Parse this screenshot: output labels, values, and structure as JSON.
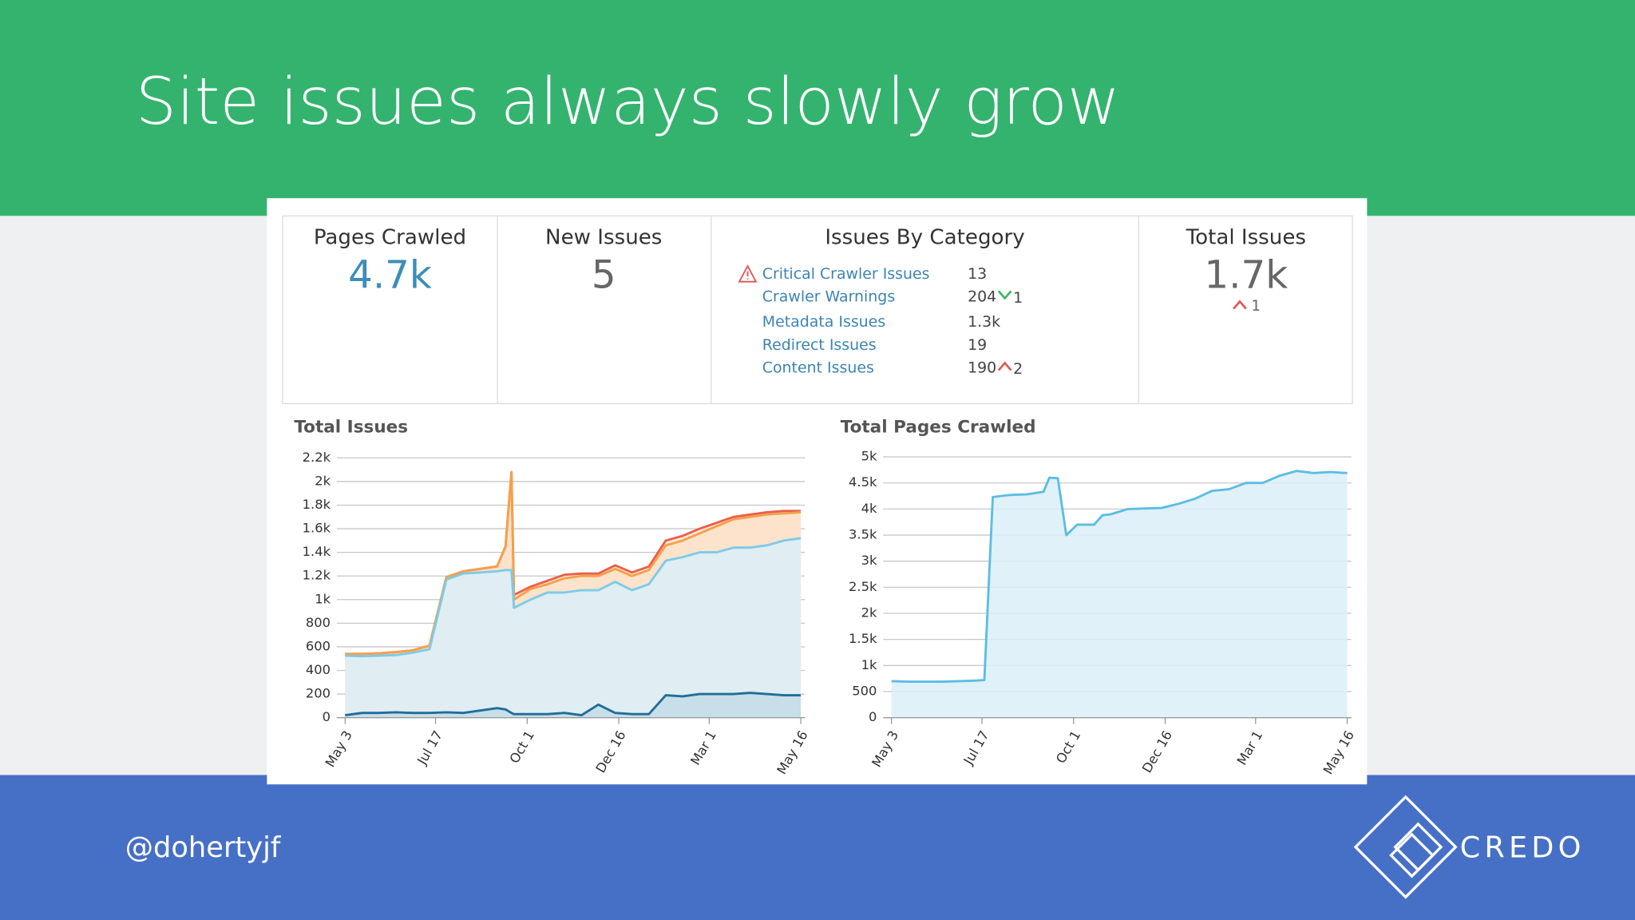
{
  "title": "Site issues always slowly grow",
  "stats": [
    {
      "label": "Pages Crawled",
      "value": "4.7k",
      "color": "#3d8db8"
    },
    {
      "label": "New Issues",
      "value": 5,
      "color": "#666666"
    },
    {
      "label": "Total Issues",
      "value": "1.7k",
      "color": "#666666",
      "change": 1,
      "trend": "up"
    }
  ],
  "categories_panel": {
    "title": "Issues By Category",
    "items": [
      {
        "name": "Critical Crawler Issues",
        "value": 13,
        "icon": "warning"
      },
      {
        "name": "Crawler Warnings",
        "value": 204,
        "change": 1,
        "trend": "down"
      },
      {
        "name": "Metadata Issues",
        "value": "1.3k"
      },
      {
        "name": "Redirect Issues",
        "value": 19
      },
      {
        "name": "Content Issues",
        "value": 190,
        "change": 2,
        "trend": "up"
      }
    ]
  },
  "chart_data": [
    {
      "type": "area",
      "title": "Total Issues",
      "x": [
        0,
        14,
        28,
        42,
        56,
        70,
        84,
        98,
        112,
        126,
        133,
        138,
        140,
        154,
        168,
        182,
        196,
        210,
        224,
        238,
        252,
        266,
        280,
        294,
        308,
        322,
        336,
        350,
        364,
        378
      ],
      "series": [
        {
          "color": "#e8604c",
          "fill": "#fde6d2",
          "values": [
            540,
            540,
            545,
            555,
            570,
            610,
            1190,
            1240,
            1260,
            1280,
            1450,
            2080,
            1040,
            1110,
            1160,
            1210,
            1220,
            1220,
            1290,
            1230,
            1280,
            1500,
            1540,
            1600,
            1650,
            1700,
            1720,
            1740,
            1750,
            1750
          ]
        },
        {
          "color": "#f5a04a",
          "fill": "#fde2c8",
          "values": [
            540,
            540,
            545,
            555,
            570,
            610,
            1190,
            1240,
            1260,
            1280,
            1450,
            2080,
            1000,
            1090,
            1130,
            1180,
            1200,
            1200,
            1260,
            1200,
            1250,
            1460,
            1500,
            1560,
            1620,
            1680,
            1700,
            1720,
            1730,
            1740
          ]
        },
        {
          "color": "#7ccbe8",
          "fill": "#dbeff9",
          "values": [
            525,
            520,
            525,
            530,
            550,
            580,
            1170,
            1220,
            1230,
            1240,
            1250,
            1250,
            930,
            1000,
            1060,
            1060,
            1080,
            1080,
            1150,
            1080,
            1130,
            1330,
            1360,
            1400,
            1400,
            1440,
            1440,
            1460,
            1500,
            1520
          ]
        },
        {
          "color": "#1f6e99",
          "fill": "#c3dbe8",
          "values": [
            20,
            40,
            40,
            45,
            40,
            40,
            45,
            40,
            60,
            80,
            70,
            40,
            30,
            30,
            30,
            40,
            20,
            110,
            40,
            30,
            30,
            190,
            180,
            200,
            200,
            200,
            210,
            200,
            190,
            190
          ]
        }
      ],
      "xlim": [
        0,
        378
      ],
      "xticks": [
        {
          "value": 0,
          "label": "May 3"
        },
        {
          "value": 75,
          "label": "Jul 17"
        },
        {
          "value": 151,
          "label": "Oct 1"
        },
        {
          "value": 227,
          "label": "Dec 16"
        },
        {
          "value": 302,
          "label": "Mar 1"
        },
        {
          "value": 378,
          "label": "May 16"
        }
      ],
      "ylim": [
        0,
        2200
      ],
      "yticks": [
        0,
        200,
        400,
        600,
        800,
        {
          "value": 1000,
          "label": "1k"
        },
        {
          "value": 1200,
          "label": "1.2k"
        },
        {
          "value": 1400,
          "label": "1.4k"
        },
        {
          "value": 1600,
          "label": "1.6k"
        },
        {
          "value": 1800,
          "label": "1.8k"
        },
        {
          "value": 2000,
          "label": "2k"
        },
        {
          "value": 2200,
          "label": "2.2k"
        }
      ],
      "grid": true
    },
    {
      "type": "area",
      "title": "Total Pages Crawled",
      "x": [
        0,
        14,
        28,
        42,
        56,
        70,
        77,
        84,
        98,
        112,
        126,
        131,
        138,
        145,
        154,
        168,
        175,
        182,
        196,
        210,
        224,
        238,
        252,
        266,
        280,
        294,
        308,
        322,
        336,
        350,
        364,
        378
      ],
      "series": [
        {
          "color": "#5cbde3",
          "fill": "#dbeff9",
          "values": [
            700,
            690,
            690,
            690,
            700,
            710,
            720,
            4230,
            4270,
            4280,
            4330,
            4600,
            4590,
            3500,
            3700,
            3700,
            3880,
            3900,
            4000,
            4010,
            4020,
            4100,
            4200,
            4350,
            4380,
            4500,
            4500,
            4640,
            4730,
            4690,
            4710,
            4690
          ]
        }
      ],
      "xlim": [
        0,
        378
      ],
      "xticks": [
        {
          "value": 0,
          "label": "May 3"
        },
        {
          "value": 75,
          "label": "Jul 17"
        },
        {
          "value": 151,
          "label": "Oct 1"
        },
        {
          "value": 227,
          "label": "Dec 16"
        },
        {
          "value": 302,
          "label": "Mar 1"
        },
        {
          "value": 378,
          "label": "May 16"
        }
      ],
      "ylim": [
        0,
        5000
      ],
      "yticks": [
        0,
        500,
        {
          "value": 1000,
          "label": "1k"
        },
        {
          "value": 1500,
          "label": "1.5k"
        },
        {
          "value": 2000,
          "label": "2k"
        },
        {
          "value": 2500,
          "label": "2.5k"
        },
        {
          "value": 3000,
          "label": "3k"
        },
        {
          "value": 3500,
          "label": "3.5k"
        },
        {
          "value": 4000,
          "label": "4k"
        },
        {
          "value": 4500,
          "label": "4.5k"
        },
        {
          "value": 5000,
          "label": "5k"
        }
      ],
      "grid": true
    }
  ],
  "footer": {
    "handle": "@dohertyjf",
    "brand": "CREDO"
  }
}
